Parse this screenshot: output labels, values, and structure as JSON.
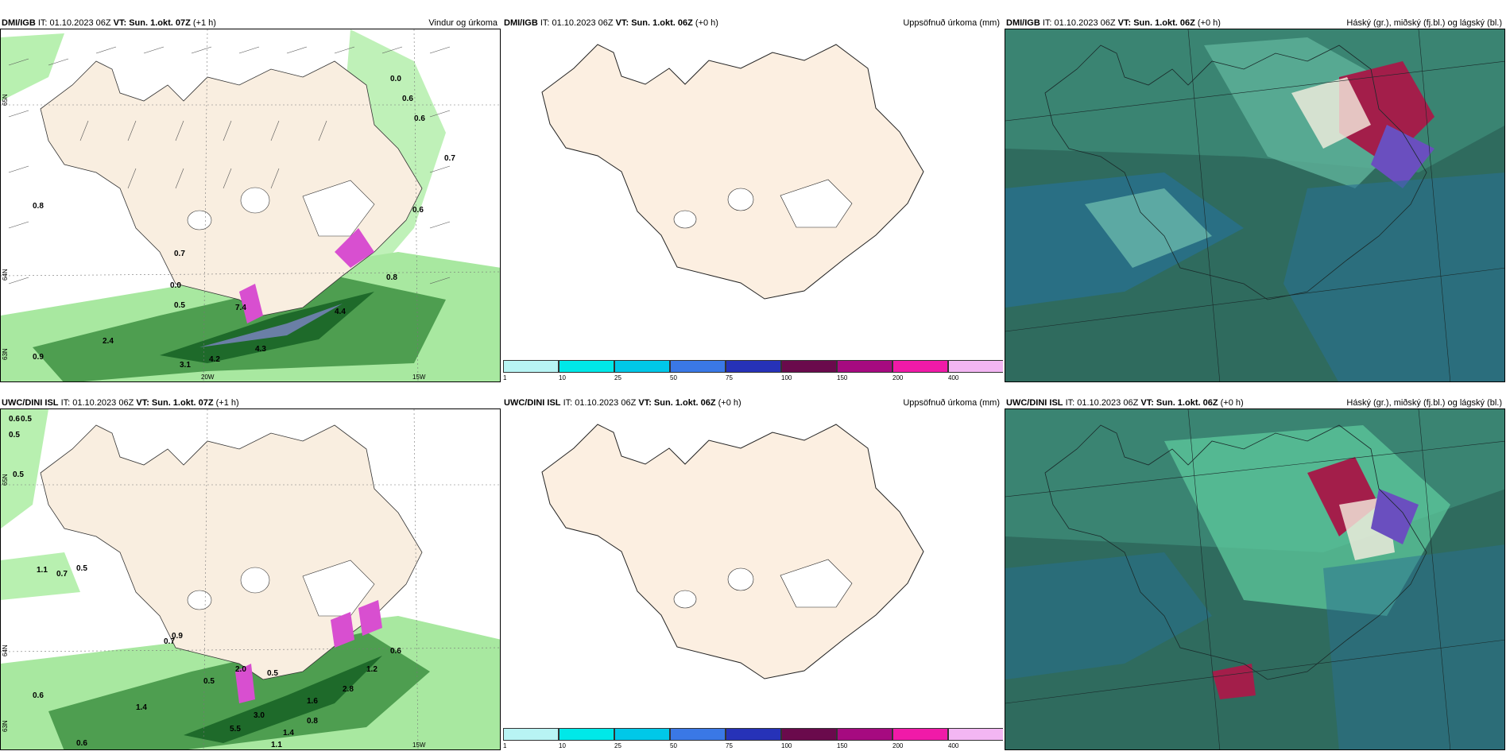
{
  "rows": [
    {
      "wind": {
        "model": "DMI/IGB",
        "it": "IT: 01.10.2023 06Z",
        "vt_label": "VT:",
        "vt": "Sun. 1.okt. 07Z",
        "lead": "(+1 h)",
        "title": "Vindur og úrkoma"
      },
      "accum": {
        "model": "DMI/IGB",
        "it": "IT: 01.10.2023 06Z",
        "vt_label": "VT:",
        "vt": "Sun. 1.okt. 06Z",
        "lead": "(+0 h)",
        "title": "Uppsöfnuð úrkoma (mm)"
      },
      "clouds": {
        "model": "DMI/IGB",
        "it": "IT: 01.10.2023 06Z",
        "vt_label": "VT:",
        "vt": "Sun. 1.okt. 06Z",
        "lead": "(+0 h)",
        "title": "Háský (gr.), miðský (fj.bl.) og lágský (bl.)"
      },
      "precip_labels": [
        "0.0",
        "0.6",
        "0.6",
        "0.7",
        "0.8",
        "0.6",
        "0.7",
        "0.0",
        "0.5",
        "0.8",
        "4.4",
        "2.4",
        "4.3",
        "4.2",
        "3.1",
        "0.9",
        "7.4"
      ]
    },
    {
      "wind": {
        "model": "UWC/DINI ISL",
        "it": "IT: 01.10.2023 06Z",
        "vt_label": "VT:",
        "vt": "Sun. 1.okt. 07Z",
        "lead": "(+1 h)",
        "title": ""
      },
      "accum": {
        "model": "UWC/DINI ISL",
        "it": "IT: 01.10.2023 06Z",
        "vt_label": "VT:",
        "vt": "Sun. 1.okt. 06Z",
        "lead": "(+0 h)",
        "title": "Uppsöfnuð úrkoma (mm)"
      },
      "clouds": {
        "model": "UWC/DINI ISL",
        "it": "IT: 01.10.2023 06Z",
        "vt_label": "VT:",
        "vt": "Sun. 1.okt. 06Z",
        "lead": "(+0 h)",
        "title": "Háský (gr.), miðský (fj.bl.) og lágský (bl.)"
      },
      "precip_labels": [
        "0.6",
        "0.5",
        "0.5",
        "0.5",
        "1.1",
        "0.7",
        "0.5",
        "0.9",
        "0.7",
        "0.6",
        "0.5",
        "2.0",
        "0.5",
        "1.2",
        "2.8",
        "1.6",
        "0.8",
        "1.4",
        "5.5",
        "3.0",
        "1.4",
        "0.6",
        "0.6",
        "1.1"
      ]
    }
  ],
  "axes": {
    "lat_n": [
      "65N",
      "64N",
      "63N"
    ],
    "lon_w": [
      "20W",
      "15W"
    ]
  },
  "scale": {
    "ticks": [
      "1",
      "10",
      "25",
      "50",
      "75",
      "100",
      "150",
      "200",
      "400"
    ],
    "colors": [
      "#b8f4f4",
      "#00e8e8",
      "#00c8e8",
      "#3a78e6",
      "#2632b8",
      "#6a0a4c",
      "#a60a80",
      "#f01aa8",
      "#f3b6f3"
    ]
  }
}
